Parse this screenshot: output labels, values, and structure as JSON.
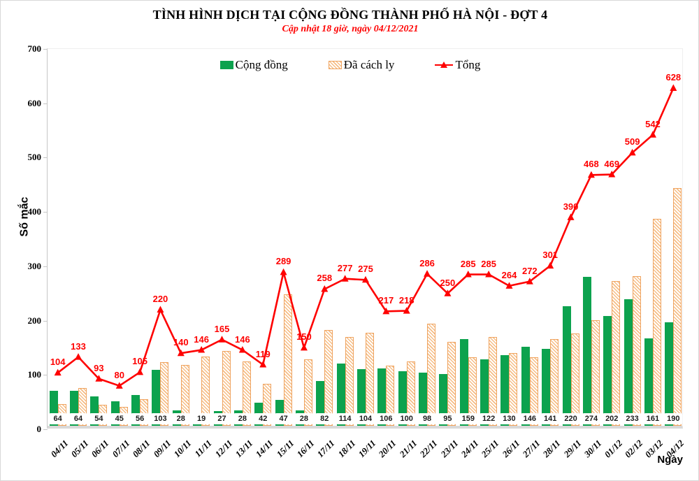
{
  "header": {
    "title": "TÌNH HÌNH DỊCH TẠI CỘNG ĐỒNG THÀNH PHỐ HÀ NỘI - ĐỢT 4",
    "subtitle": "Cập nhật 18 giờ, ngày 04/12/2021"
  },
  "legend": {
    "items": [
      {
        "label": "Cộng đồng",
        "swatch": "green-solid-square"
      },
      {
        "label": "Đã cách ly",
        "swatch": "orange-hatched-square"
      },
      {
        "label": "Tổng",
        "swatch": "red-line-with-triangle-marker"
      }
    ]
  },
  "axes": {
    "y_title": "Số mắc",
    "x_title": "Ngày",
    "y_ticks": [
      0,
      100,
      200,
      300,
      400,
      500,
      600,
      700
    ]
  },
  "colors": {
    "community_green": "#0ca24e",
    "quarantine_orange": "#efa35f",
    "quarantine_hatch_fill": "#f6bd85",
    "total_red": "#fe0000",
    "axis_gray": "#c6c6c6",
    "axis_band_gray": "#d9d9d9"
  },
  "chart_data": {
    "type": "bar",
    "title": "TÌNH HÌNH DỊCH TẠI CỘNG ĐỒNG THÀNH PHỐ HÀ NỘI - ĐỢT 4",
    "subtitle": "Cập nhật 18 giờ, ngày 04/12/2021",
    "xlabel": "Ngày",
    "ylabel": "Số mắc",
    "ylim": [
      0,
      700
    ],
    "ytick_step": 100,
    "grid": false,
    "legend_position": "top",
    "categories": [
      "04/11",
      "05/11",
      "06/11",
      "07/11",
      "08/11",
      "09/11",
      "10/11",
      "11/11",
      "12/11",
      "13/11",
      "14/11",
      "15/11",
      "16/11",
      "17/11",
      "18/11",
      "19/11",
      "20/11",
      "21/11",
      "22/11",
      "23/11",
      "24/11",
      "25/11",
      "26/11",
      "27/11",
      "28/11",
      "29/11",
      "30/11",
      "01/12",
      "02/12",
      "03/12",
      "04/12"
    ],
    "series": [
      {
        "name": "Cộng đồng",
        "type": "bar",
        "color": "#0ca24e",
        "values": [
          64,
          64,
          54,
          45,
          56,
          103,
          28,
          19,
          27,
          28,
          42,
          47,
          28,
          82,
          114,
          104,
          106,
          100,
          98,
          95,
          159,
          122,
          130,
          146,
          141,
          220,
          274,
          202,
          233,
          161,
          190
        ],
        "labels_shown": true,
        "label_position": "inside-base-white-box"
      },
      {
        "name": "Đã cách ly",
        "type": "bar",
        "style": "hatched",
        "color": "#efa35f",
        "values": [
          40,
          69,
          39,
          35,
          49,
          117,
          112,
          127,
          138,
          118,
          77,
          242,
          122,
          176,
          163,
          171,
          111,
          118,
          188,
          155,
          126,
          163,
          134,
          126,
          160,
          170,
          194,
          267,
          276,
          381,
          438
        ],
        "labels_shown": false
      },
      {
        "name": "Tổng",
        "type": "line",
        "color": "#fe0000",
        "marker": "triangle-up",
        "values": [
          104,
          133,
          93,
          80,
          105,
          220,
          140,
          146,
          165,
          146,
          119,
          289,
          150,
          258,
          277,
          275,
          217,
          218,
          286,
          250,
          285,
          285,
          264,
          272,
          301,
          390,
          468,
          469,
          509,
          542,
          628
        ],
        "labels_shown": true,
        "label_position": "above"
      }
    ]
  }
}
